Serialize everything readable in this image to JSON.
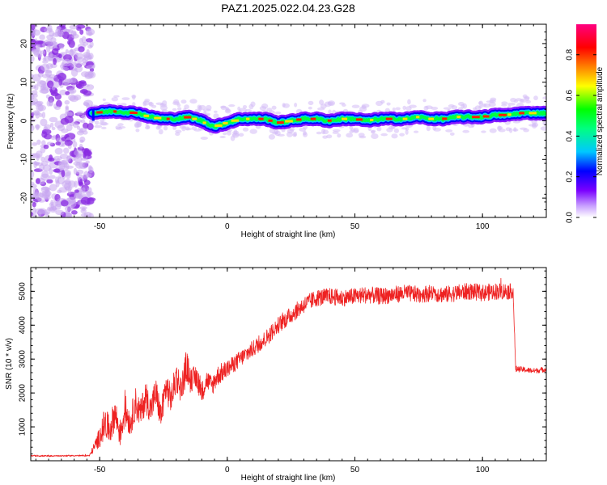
{
  "title": "PAZ1.2025.022.04.23.G28",
  "chart_data": [
    {
      "type": "heatmap",
      "xlabel": "Height of straight line (km)",
      "ylabel": "Frequency (Hz)",
      "xlim": [
        -77,
        125
      ],
      "ylim": [
        -25,
        25
      ],
      "xticks": [
        -50,
        0,
        50,
        100
      ],
      "yticks": [
        -20,
        -10,
        0,
        10,
        20
      ],
      "xtick_labels": [
        "-50",
        "0",
        "50",
        "100"
      ],
      "ytick_labels": [
        "-20",
        "-10",
        "0",
        "10",
        "20"
      ],
      "colorbar": {
        "label": "Normalized spectral amplitude",
        "range": [
          0,
          0.95
        ],
        "ticks": [
          0.0,
          0.2,
          0.4,
          0.6,
          0.8
        ],
        "tick_labels": [
          "0.0",
          "0.2",
          "0.4",
          "0.6",
          "0.8"
        ],
        "colors": [
          "#ffffff",
          "#7a00ff",
          "#0000ff",
          "#00c8ff",
          "#00ff00",
          "#ffff00",
          "#ff8000",
          "#ff0000",
          "#ff0080"
        ]
      },
      "noise_region_x": [
        -77,
        -53
      ],
      "ridge": {
        "x": [
          -53,
          -45,
          -35,
          -30,
          -25,
          -20,
          -15,
          -10,
          -5,
          0,
          5,
          10,
          15,
          20,
          25,
          30,
          35,
          40,
          45,
          50,
          55,
          60,
          65,
          70,
          75,
          80,
          85,
          90,
          95,
          100,
          105,
          110,
          115,
          120,
          125
        ],
        "frequency": [
          2.0,
          2.5,
          2.0,
          1.0,
          0.5,
          0.5,
          1.0,
          0.0,
          -1.5,
          -0.5,
          0.5,
          0.5,
          0.5,
          -0.5,
          0.0,
          0.5,
          0.5,
          0.0,
          0.5,
          0.5,
          0.0,
          0.5,
          0.5,
          0.5,
          1.0,
          0.5,
          0.5,
          1.0,
          1.0,
          1.0,
          1.5,
          1.5,
          2.0,
          2.0,
          2.0
        ]
      }
    },
    {
      "type": "line",
      "xlabel": "Height of straight line (km)",
      "ylabel": "SNR (10 * v/v)",
      "xlim": [
        -77,
        125
      ],
      "ylim": [
        0,
        5700
      ],
      "xticks": [
        -50,
        0,
        50,
        100
      ],
      "yticks": [
        1000,
        2000,
        3000,
        4000,
        5000
      ],
      "xtick_labels": [
        "-50",
        "0",
        "50",
        "100"
      ],
      "ytick_labels": [
        "1000",
        "2000",
        "3000",
        "4000",
        "5000"
      ],
      "series": [
        {
          "color": "#ee2222",
          "x": [
            -77,
            -70,
            -60,
            -54,
            -50,
            -48,
            -46,
            -44,
            -42,
            -40,
            -38,
            -36,
            -34,
            -32,
            -30,
            -28,
            -26,
            -24,
            -22,
            -20,
            -18,
            -16,
            -14,
            -12,
            -10,
            -8,
            -6,
            -4,
            -2,
            0,
            5,
            10,
            15,
            20,
            25,
            30,
            35,
            40,
            45,
            50,
            55,
            60,
            65,
            70,
            75,
            80,
            85,
            90,
            95,
            100,
            105,
            110,
            112,
            113,
            115,
            120,
            125
          ],
          "y": [
            150,
            140,
            150,
            150,
            700,
            1100,
            900,
            1400,
            800,
            1500,
            1100,
            1700,
            1400,
            1900,
            1500,
            2000,
            1300,
            2200,
            1800,
            2500,
            2100,
            2800,
            2300,
            2500,
            2000,
            2400,
            2200,
            2500,
            2600,
            2700,
            3000,
            3300,
            3600,
            4000,
            4300,
            4600,
            4800,
            4850,
            4800,
            4850,
            4900,
            4850,
            4900,
            4950,
            4900,
            4950,
            4900,
            4950,
            5000,
            4950,
            5000,
            5000,
            5000,
            2700,
            2700,
            2650,
            2700
          ],
          "noise_amplitude": [
            20,
            20,
            20,
            20,
            300,
            500,
            400,
            500,
            400,
            500,
            400,
            500,
            400,
            500,
            400,
            500,
            400,
            500,
            400,
            500,
            400,
            500,
            400,
            400,
            300,
            300,
            300,
            300,
            300,
            250,
            250,
            250,
            250,
            250,
            250,
            250,
            250,
            250,
            250,
            250,
            250,
            250,
            250,
            250,
            250,
            250,
            250,
            250,
            250,
            250,
            250,
            250,
            200,
            100,
            80,
            80,
            80
          ]
        }
      ]
    }
  ]
}
